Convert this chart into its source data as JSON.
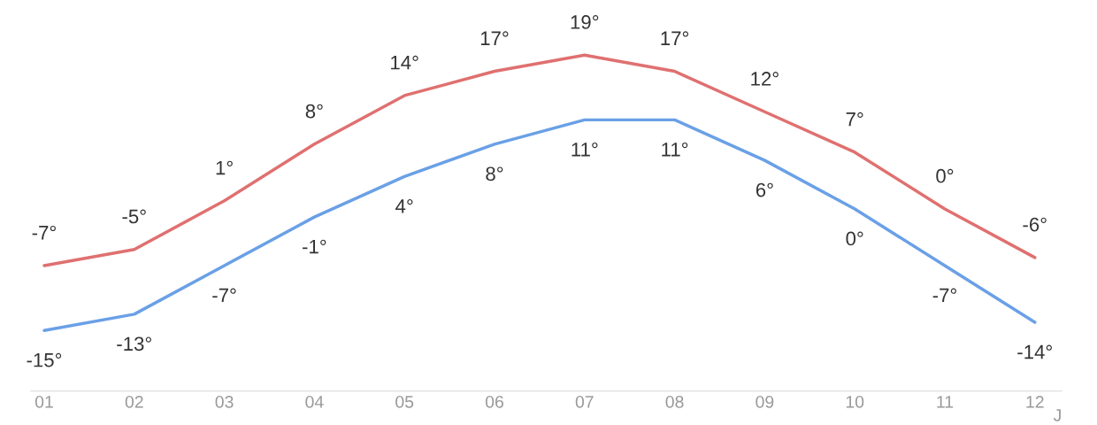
{
  "chart_data": {
    "type": "line",
    "xlabel": "J",
    "categories": [
      "01",
      "02",
      "03",
      "04",
      "05",
      "06",
      "07",
      "08",
      "09",
      "10",
      "11",
      "12"
    ],
    "series": [
      {
        "color": "#e07070",
        "values": [
          -7,
          -5,
          1,
          8,
          14,
          17,
          19,
          17,
          12,
          7,
          0,
          -6
        ],
        "value_labels": [
          "-7°",
          "-5°",
          "1°",
          "8°",
          "14°",
          "17°",
          "19°",
          "17°",
          "12°",
          "7°",
          "0°",
          "-6°"
        ]
      },
      {
        "color": "#6aa0e6",
        "values": [
          -15,
          -13,
          -7,
          -1,
          4,
          8,
          11,
          11,
          6,
          0,
          -7,
          -14
        ],
        "value_labels": [
          "-15°",
          "-13°",
          "-7°",
          "-1°",
          "4°",
          "8°",
          "11°",
          "11°",
          "6°",
          "0°",
          "-7°",
          "-14°"
        ]
      }
    ],
    "grid": false,
    "legend": false,
    "marker": "none",
    "line_style": "solid",
    "tick_labels": "x"
  }
}
